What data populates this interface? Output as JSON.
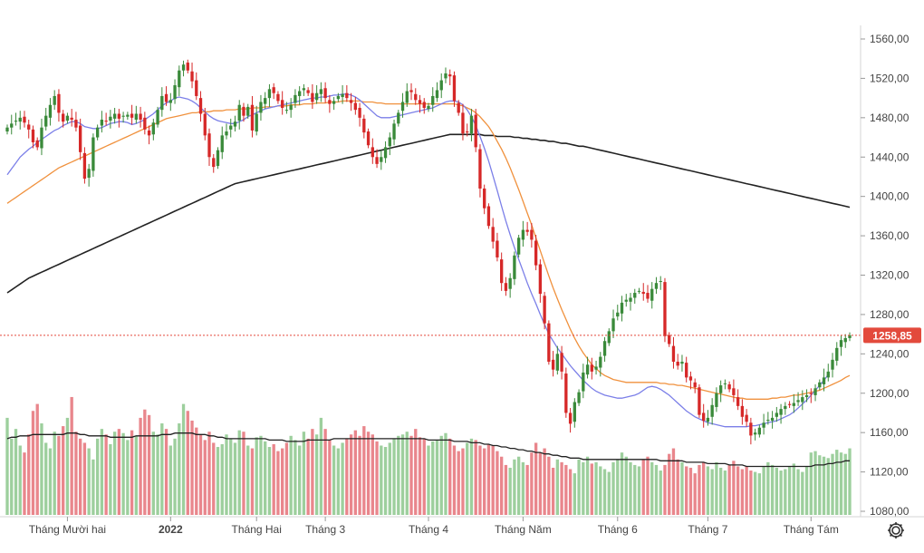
{
  "chart_data": {
    "type": "candlestick",
    "title": "",
    "last_price_label": "1258,85",
    "last_price": 1258.85,
    "ylim": [
      1080,
      1580
    ],
    "y_ticks": [
      {
        "v": 1080,
        "label": "1080,00"
      },
      {
        "v": 1120,
        "label": "1120,00"
      },
      {
        "v": 1160,
        "label": "1160,00"
      },
      {
        "v": 1200,
        "label": "1200,00"
      },
      {
        "v": 1240,
        "label": "1240,00"
      },
      {
        "v": 1280,
        "label": "1280,00"
      },
      {
        "v": 1320,
        "label": "1320,00"
      },
      {
        "v": 1360,
        "label": "1360,00"
      },
      {
        "v": 1400,
        "label": "1400,00"
      },
      {
        "v": 1440,
        "label": "1440,00"
      },
      {
        "v": 1480,
        "label": "1480,00"
      },
      {
        "v": 1520,
        "label": "1520,00"
      },
      {
        "v": 1560,
        "label": "1560,00"
      }
    ],
    "x_ticks": [
      {
        "i": 14,
        "label": "Tháng Mười hai",
        "bold": false
      },
      {
        "i": 38,
        "label": "2022",
        "bold": true
      },
      {
        "i": 58,
        "label": "Tháng Hai",
        "bold": false
      },
      {
        "i": 74,
        "label": "Tháng 3",
        "bold": false
      },
      {
        "i": 98,
        "label": "Tháng 4",
        "bold": false
      },
      {
        "i": 120,
        "label": "Tháng Năm",
        "bold": false
      },
      {
        "i": 142,
        "label": "Tháng 6",
        "bold": false
      },
      {
        "i": 163,
        "label": "Tháng 7",
        "bold": false
      },
      {
        "i": 187,
        "label": "Tháng Tám",
        "bold": false
      }
    ],
    "candle_count": 197,
    "candles_close": [
      1470,
      1474,
      1477,
      1480,
      1475,
      1468,
      1455,
      1450,
      1470,
      1482,
      1493,
      1502,
      1485,
      1476,
      1482,
      1478,
      1470,
      1445,
      1418,
      1428,
      1460,
      1470,
      1478,
      1476,
      1481,
      1484,
      1479,
      1482,
      1483,
      1480,
      1484,
      1478,
      1468,
      1462,
      1475,
      1488,
      1502,
      1496,
      1498,
      1513,
      1528,
      1534,
      1528,
      1517,
      1502,
      1484,
      1462,
      1440,
      1430,
      1447,
      1462,
      1466,
      1472,
      1476,
      1493,
      1482,
      1491,
      1467,
      1484,
      1496,
      1500,
      1509,
      1505,
      1497,
      1490,
      1488,
      1493,
      1503,
      1507,
      1510,
      1505,
      1496,
      1505,
      1509,
      1500,
      1494,
      1497,
      1502,
      1504,
      1500,
      1495,
      1488,
      1480,
      1465,
      1452,
      1440,
      1433,
      1440,
      1450,
      1460,
      1474,
      1485,
      1496,
      1507,
      1506,
      1498,
      1494,
      1490,
      1492,
      1502,
      1508,
      1518,
      1525,
      1522,
      1497,
      1485,
      1464,
      1465,
      1482,
      1450,
      1408,
      1388,
      1370,
      1354,
      1338,
      1312,
      1304,
      1317,
      1340,
      1358,
      1366,
      1364,
      1356,
      1330,
      1301,
      1271,
      1232,
      1224,
      1240,
      1222,
      1180,
      1169,
      1191,
      1201,
      1221,
      1229,
      1222,
      1227,
      1237,
      1253,
      1263,
      1276,
      1282,
      1292,
      1295,
      1297,
      1302,
      1304,
      1301,
      1296,
      1306,
      1312,
      1314,
      1258,
      1250,
      1232,
      1228,
      1232,
      1216,
      1213,
      1206,
      1178,
      1172,
      1175,
      1188,
      1200,
      1208,
      1210,
      1204,
      1198,
      1187,
      1176,
      1171,
      1157,
      1160,
      1165,
      1170,
      1173,
      1175,
      1180,
      1184,
      1187,
      1188,
      1190,
      1193,
      1196,
      1198,
      1199,
      1205,
      1211,
      1216,
      1222,
      1234,
      1246,
      1254,
      1256,
      1258.85
    ],
    "ma20": [
      1422,
      1428,
      1434,
      1440,
      1444,
      1448,
      1451,
      1455,
      1458,
      1461,
      1464,
      1467,
      1469,
      1472,
      1474,
      1476,
      1476,
      1474,
      1471,
      1470,
      1469,
      1469,
      1470,
      1472,
      1474,
      1475,
      1476,
      1476,
      1475,
      1473,
      1474,
      1476,
      1478,
      1481,
      1484,
      1488,
      1492,
      1495,
      1497,
      1500,
      1501,
      1500,
      1499,
      1497,
      1494,
      1490,
      1486,
      1482,
      1479,
      1477,
      1476,
      1475,
      1474,
      1474,
      1476,
      1478,
      1481,
      1483,
      1485,
      1487,
      1489,
      1490,
      1491,
      1492,
      1493,
      1494,
      1495,
      1496,
      1497,
      1498,
      1499,
      1500,
      1500,
      1501,
      1501,
      1502,
      1503,
      1503,
      1504,
      1504,
      1503,
      1501,
      1498,
      1494,
      1490,
      1486,
      1482,
      1480,
      1480,
      1480,
      1481,
      1482,
      1483,
      1484,
      1485,
      1486,
      1487,
      1488,
      1489,
      1490,
      1492,
      1494,
      1496,
      1497,
      1497,
      1496,
      1493,
      1488,
      1481,
      1472,
      1461,
      1449,
      1436,
      1421,
      1406,
      1390,
      1375,
      1361,
      1348,
      1336,
      1324,
      1312,
      1301,
      1291,
      1280,
      1270,
      1260,
      1253,
      1246,
      1240,
      1234,
      1228,
      1223,
      1218,
      1213,
      1209,
      1205,
      1202,
      1200,
      1198,
      1197,
      1196,
      1195,
      1195,
      1196,
      1197,
      1198,
      1200,
      1203,
      1206,
      1207,
      1206,
      1204,
      1201,
      1198,
      1194,
      1190,
      1186,
      1182,
      1179,
      1176,
      1174,
      1172,
      1170,
      1169,
      1168,
      1167,
      1166,
      1166,
      1166,
      1166,
      1166,
      1166,
      1167,
      1167,
      1168,
      1169,
      1170,
      1171,
      1172,
      1174,
      1176,
      1178,
      1181,
      1185,
      1189,
      1193,
      1198,
      1203,
      1208,
      1213,
      1219
    ],
    "ma50": [
      1393,
      1396,
      1399,
      1402,
      1405,
      1408,
      1411,
      1414,
      1417,
      1420,
      1423,
      1426,
      1429,
      1431,
      1433,
      1435,
      1437,
      1439,
      1441,
      1443,
      1445,
      1447,
      1449,
      1451,
      1453,
      1455,
      1457,
      1459,
      1461,
      1463,
      1465,
      1467,
      1469,
      1471,
      1473,
      1475,
      1477,
      1479,
      1480,
      1481,
      1482,
      1483,
      1484,
      1485,
      1485,
      1486,
      1486,
      1486,
      1487,
      1487,
      1487,
      1488,
      1488,
      1488,
      1489,
      1489,
      1489,
      1490,
      1490,
      1490,
      1491,
      1491,
      1491,
      1492,
      1492,
      1492,
      1493,
      1493,
      1493,
      1494,
      1494,
      1494,
      1495,
      1495,
      1495,
      1496,
      1496,
      1496,
      1497,
      1497,
      1497,
      1497,
      1497,
      1496,
      1496,
      1496,
      1495,
      1495,
      1494,
      1494,
      1494,
      1494,
      1494,
      1494,
      1494,
      1494,
      1494,
      1494,
      1494,
      1494,
      1494,
      1494,
      1494,
      1494,
      1494,
      1493,
      1492,
      1490,
      1488,
      1485,
      1481,
      1476,
      1471,
      1464,
      1456,
      1448,
      1439,
      1429,
      1418,
      1407,
      1395,
      1383,
      1371,
      1358,
      1345,
      1332,
      1319,
      1307,
      1296,
      1285,
      1275,
      1265,
      1256,
      1248,
      1241,
      1235,
      1229,
      1225,
      1221,
      1218,
      1216,
      1214,
      1213,
      1212,
      1211,
      1211,
      1211,
      1211,
      1211,
      1211,
      1211,
      1211,
      1210,
      1210,
      1209,
      1209,
      1208,
      1208,
      1207,
      1206,
      1205,
      1204,
      1203,
      1202,
      1201,
      1200,
      1199,
      1198,
      1197,
      1196,
      1195,
      1195,
      1194,
      1194,
      1194,
      1194,
      1194,
      1194,
      1195,
      1195,
      1196,
      1196,
      1197,
      1198,
      1198,
      1199,
      1200,
      1201,
      1202,
      1203,
      1205,
      1207,
      1209,
      1211,
      1213,
      1216,
      1218
    ],
    "ma200": [
      1302,
      1305,
      1308,
      1311,
      1314,
      1317,
      1319,
      1321,
      1323,
      1325,
      1327,
      1329,
      1331,
      1333,
      1335,
      1337,
      1339,
      1341,
      1343,
      1345,
      1347,
      1349,
      1351,
      1353,
      1355,
      1357,
      1359,
      1361,
      1363,
      1365,
      1367,
      1369,
      1371,
      1373,
      1375,
      1377,
      1379,
      1381,
      1383,
      1385,
      1387,
      1389,
      1391,
      1393,
      1395,
      1397,
      1399,
      1401,
      1403,
      1405,
      1407,
      1409,
      1411,
      1413,
      1414,
      1415,
      1416,
      1417,
      1418,
      1419,
      1420,
      1421,
      1422,
      1423,
      1424,
      1425,
      1426,
      1427,
      1428,
      1429,
      1430,
      1431,
      1432,
      1433,
      1434,
      1435,
      1436,
      1437,
      1438,
      1439,
      1440,
      1441,
      1442,
      1443,
      1444,
      1445,
      1446,
      1447,
      1448,
      1449,
      1450,
      1451,
      1452,
      1453,
      1454,
      1455,
      1456,
      1457,
      1458,
      1459,
      1460,
      1461,
      1462,
      1463,
      1463,
      1463,
      1463,
      1463,
      1463,
      1463,
      1463,
      1462,
      1462,
      1462,
      1461,
      1461,
      1461,
      1461,
      1460,
      1460,
      1459,
      1459,
      1458,
      1458,
      1457,
      1457,
      1456,
      1456,
      1455,
      1454,
      1454,
      1453,
      1452,
      1451,
      1451,
      1450,
      1449,
      1448,
      1447,
      1446,
      1445,
      1444,
      1443,
      1442,
      1441,
      1440,
      1439,
      1438,
      1437,
      1436,
      1435,
      1434,
      1433,
      1432,
      1431,
      1430,
      1429,
      1428,
      1427,
      1426,
      1425,
      1424,
      1423,
      1422,
      1421,
      1420,
      1419,
      1418,
      1417,
      1416,
      1415,
      1414,
      1413,
      1412,
      1411,
      1410,
      1409,
      1408,
      1407,
      1406,
      1405,
      1404,
      1403,
      1402,
      1401,
      1400,
      1399,
      1398,
      1397,
      1396,
      1395,
      1394,
      1393,
      1392,
      1391,
      1390,
      1389
    ],
    "volume_scale": {
      "max_value": 100,
      "comment": "relative volume units"
    },
    "volumes": [
      70,
      55,
      62,
      50,
      45,
      58,
      75,
      80,
      66,
      52,
      48,
      60,
      57,
      64,
      70,
      85,
      60,
      55,
      52,
      48,
      40,
      55,
      62,
      58,
      51,
      60,
      62,
      59,
      54,
      61,
      57,
      70,
      76,
      72,
      60,
      58,
      66,
      62,
      50,
      55,
      66,
      80,
      75,
      68,
      63,
      58,
      54,
      60,
      52,
      49,
      51,
      58,
      55,
      52,
      61,
      60,
      50,
      48,
      56,
      57,
      53,
      49,
      51,
      46,
      48,
      52,
      57,
      54,
      50,
      60,
      55,
      62,
      58,
      70,
      62,
      54,
      50,
      48,
      52,
      55,
      58,
      61,
      57,
      64,
      60,
      58,
      53,
      50,
      49,
      52,
      55,
      57,
      58,
      60,
      57,
      62,
      56,
      55,
      50,
      53,
      54,
      57,
      59,
      55,
      50,
      46,
      48,
      52,
      55,
      54,
      50,
      48,
      51,
      50,
      46,
      42,
      36,
      34,
      40,
      42,
      38,
      36,
      45,
      52,
      45,
      48,
      42,
      34,
      40,
      38,
      36,
      33,
      30,
      40,
      38,
      42,
      37,
      38,
      35,
      33,
      31,
      38,
      40,
      45,
      42,
      38,
      36,
      35,
      40,
      42,
      38,
      36,
      32,
      36,
      44,
      48,
      40,
      38,
      35,
      34,
      30,
      36,
      38,
      35,
      33,
      38,
      34,
      32,
      36,
      39,
      35,
      33,
      35,
      32,
      31,
      30,
      35,
      38,
      36,
      34,
      32,
      33,
      35,
      37,
      33,
      31,
      35,
      45,
      46,
      43,
      42,
      41,
      44,
      47,
      45,
      44,
      48
    ],
    "volume_ma": [
      55,
      56,
      56,
      57,
      57,
      57,
      58,
      58,
      58,
      58,
      58,
      58,
      58,
      58,
      59,
      59,
      59,
      58,
      58,
      57,
      57,
      57,
      57,
      57,
      56,
      56,
      56,
      56,
      56,
      56,
      57,
      57,
      57,
      57,
      57,
      57,
      58,
      58,
      58,
      59,
      59,
      59,
      59,
      59,
      58,
      58,
      58,
      57,
      57,
      56,
      56,
      55,
      55,
      55,
      55,
      55,
      55,
      55,
      55,
      55,
      55,
      54,
      54,
      54,
      54,
      53,
      53,
      53,
      53,
      53,
      54,
      54,
      54,
      54,
      54,
      54,
      55,
      55,
      55,
      55,
      55,
      55,
      55,
      55,
      55,
      55,
      55,
      55,
      55,
      55,
      55,
      55,
      55,
      55,
      55,
      55,
      55,
      55,
      54,
      54,
      54,
      54,
      54,
      54,
      53,
      53,
      53,
      53,
      52,
      52,
      52,
      51,
      51,
      50,
      50,
      49,
      49,
      48,
      48,
      47,
      47,
      46,
      46,
      45,
      45,
      44,
      44,
      43,
      43,
      42,
      42,
      41,
      41,
      41,
      40,
      40,
      40,
      40,
      40,
      40,
      40,
      40,
      40,
      40,
      40,
      40,
      40,
      40,
      40,
      40,
      40,
      40,
      39,
      39,
      39,
      39,
      39,
      39,
      38,
      38,
      38,
      38,
      38,
      37,
      37,
      37,
      37,
      37,
      36,
      36,
      36,
      36,
      35,
      35,
      35,
      35,
      35,
      35,
      35,
      35,
      35,
      35,
      35,
      35,
      35,
      35,
      35,
      35,
      36,
      36,
      36,
      37,
      37,
      38,
      38,
      39,
      39
    ],
    "colors": {
      "up": "#3a8a3a",
      "down": "#d62828",
      "vol_up": "#9dcf9d",
      "vol_down": "#e9868c",
      "ma20": "#7b7fe8",
      "ma50": "#f0913d",
      "ma200": "#222222",
      "vol_ma": "#222222",
      "last_price": "#e34a3c"
    }
  },
  "settings_icon": "gear-icon"
}
